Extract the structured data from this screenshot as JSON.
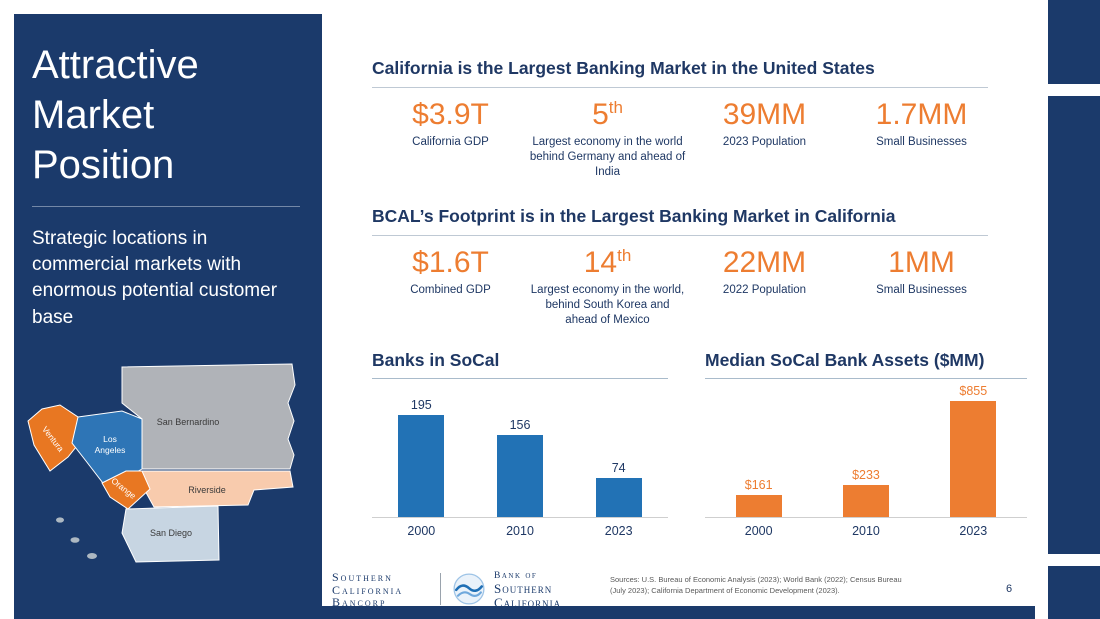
{
  "colors": {
    "navy": "#1B3A6B",
    "orange": "#ED7D31",
    "header-blue": "#1F3864",
    "bar-blue": "#2272B5"
  },
  "sidebar": {
    "title": "Attractive Market Position",
    "subtitle": "Strategic locations in commercial markets with enormous potential customer base"
  },
  "map": {
    "counties": {
      "ventura": "Ventura",
      "los_angeles_1": "Los",
      "los_angeles_2": "Angeles",
      "san_bernardino": "San Bernardino",
      "orange": "Orange",
      "riverside": "Riverside",
      "san_diego": "San Diego"
    }
  },
  "sections": [
    {
      "header": "California is the Largest Banking Market in the United States",
      "stats": [
        {
          "value": "$3.9T",
          "suffix": "",
          "caption": "California GDP"
        },
        {
          "value": "5",
          "suffix": "th",
          "caption": "Largest economy in the world behind Germany and ahead of India"
        },
        {
          "value": "39MM",
          "suffix": "",
          "caption": "2023 Population"
        },
        {
          "value": "1.7MM",
          "suffix": "",
          "caption": "Small Businesses"
        }
      ]
    },
    {
      "header": "BCAL’s Footprint is in the Largest Banking Market in California",
      "stats": [
        {
          "value": "$1.6T",
          "suffix": "",
          "caption": "Combined GDP"
        },
        {
          "value": "14",
          "suffix": "th",
          "caption": "Largest economy in the world, behind South Korea and ahead of Mexico"
        },
        {
          "value": "22MM",
          "suffix": "",
          "caption": "2022 Population"
        },
        {
          "value": "1MM",
          "suffix": "",
          "caption": "Small Businesses"
        }
      ]
    }
  ],
  "chart_data": [
    {
      "type": "bar",
      "title": "Banks in SoCal",
      "categories": [
        "2000",
        "2010",
        "2023"
      ],
      "values": [
        195,
        156,
        74
      ],
      "value_labels": [
        "195",
        "156",
        "74"
      ],
      "bar_color": "#2272B5",
      "label_color": "#1F3864",
      "ylim": [
        0,
        200
      ],
      "grid": false,
      "legend": "none"
    },
    {
      "type": "bar",
      "title": "Median SoCal Bank Assets ($MM)",
      "categories": [
        "2000",
        "2010",
        "2023"
      ],
      "values": [
        161,
        233,
        855
      ],
      "value_labels": [
        "$161",
        "$233",
        "$855"
      ],
      "bar_color": "#ED7D31",
      "label_color": "#ED7D31",
      "ylim": [
        0,
        900
      ],
      "grid": false,
      "legend": "none"
    }
  ],
  "footer": {
    "bancorp_logo": {
      "line1": "Southern",
      "line2": "California",
      "line3": "Bancorp"
    },
    "bank_logo": {
      "line1": "Bank of",
      "line2": "Southern",
      "line3": "California"
    },
    "sources": "Sources: U.S. Bureau of Economic Analysis (2023); World Bank (2022); Census Bureau (July 2023); California Department of Economic Development (2023).",
    "page_number": "6"
  }
}
